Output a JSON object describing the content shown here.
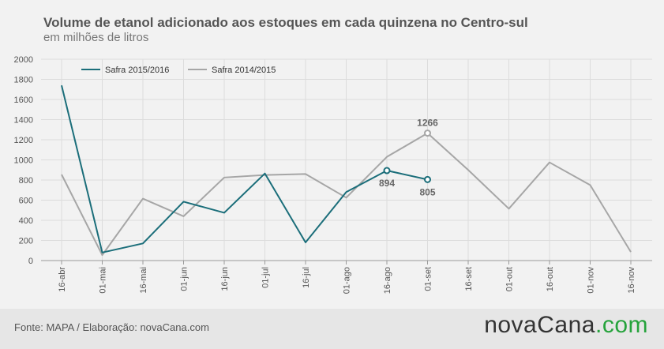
{
  "chart_data": {
    "type": "line",
    "title": "Volume de etanol adicionado aos estoques em cada quinzena no Centro-sul",
    "subtitle": "em milhões de litros",
    "categories": [
      "16-abr",
      "01-mai",
      "16-mai",
      "01-jun",
      "16-jun",
      "01-jul",
      "16-jul",
      "01-ago",
      "16-ago",
      "01-set",
      "16-set",
      "01-out",
      "16-out",
      "01-nov",
      "16-nov"
    ],
    "ylim": [
      0,
      2000
    ],
    "yticks": [
      0,
      200,
      400,
      600,
      800,
      1000,
      1200,
      1400,
      1600,
      1800,
      2000
    ],
    "grid": true,
    "legend_position": "top-left",
    "series": [
      {
        "name": "Safra 2015/2016",
        "color": "#1b6e7a",
        "values": [
          1740,
          80,
          170,
          585,
          475,
          865,
          180,
          680,
          894,
          805,
          null,
          null,
          null,
          null,
          null
        ]
      },
      {
        "name": "Safra 2014/2015",
        "color": "#a6a6a6",
        "values": [
          855,
          55,
          615,
          440,
          825,
          850,
          860,
          625,
          1030,
          1266,
          900,
          515,
          975,
          750,
          85
        ]
      }
    ],
    "annotations": [
      {
        "series": 0,
        "index": 8,
        "text": "894",
        "position": "below"
      },
      {
        "series": 0,
        "index": 9,
        "text": "805",
        "position": "below"
      },
      {
        "series": 1,
        "index": 9,
        "text": "1266",
        "position": "above"
      }
    ]
  },
  "footer": {
    "source": "Fonte: MAPA / Elaboração: novaCana.com",
    "brand_main": "novaCana",
    "brand_dot": ".",
    "brand_suffix": "com"
  }
}
